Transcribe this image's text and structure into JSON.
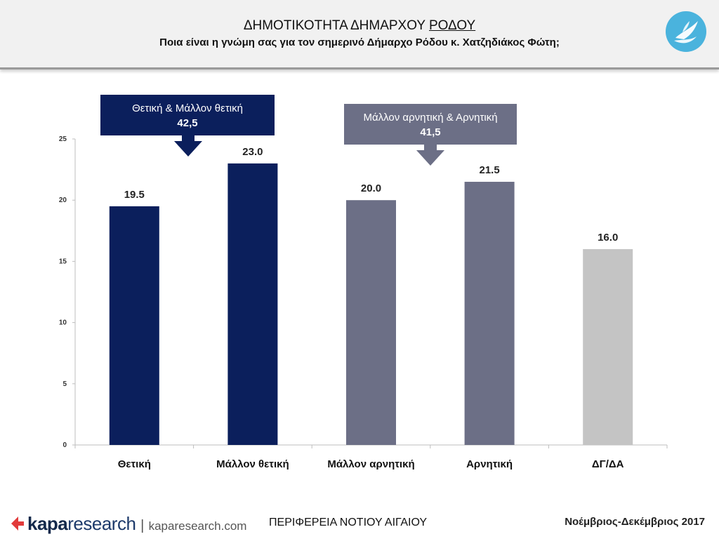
{
  "header": {
    "title_part1": "ΔΗΜΟΤΙΚΟΤΗΤΑ ΔΗΜΑΡΧΟΥ ",
    "title_part2": "ΡΟΔΟΥ",
    "subtitle": "Ποια είναι η γνώμη σας για τον σημερινό Δήμαρχο Ρόδου κ. Χατζηδιάκος Φώτη;"
  },
  "chart_data": {
    "type": "bar",
    "categories": [
      "Θετική",
      "Μάλλον θετική",
      "Μάλλον αρνητική",
      "Αρνητική",
      "ΔΓ/ΔΑ"
    ],
    "values": [
      19.5,
      23.0,
      20.0,
      21.5,
      16.0
    ],
    "value_labels": [
      "19.5",
      "23.0",
      "20.0",
      "21.5",
      "16.0"
    ],
    "bar_colors": [
      "#0b1f5c",
      "#0b1f5c",
      "#6c6f86",
      "#6c6f86",
      "#c4c4c4"
    ],
    "ylim": [
      0,
      25
    ],
    "yticks": [
      0,
      5,
      10,
      15,
      20,
      25
    ],
    "grid": false,
    "annotations": [
      {
        "line1": "Θετική & Μάλλον θετική",
        "line2": "42,5",
        "color": "#0b1f5c",
        "categories": [
          0,
          1
        ]
      },
      {
        "line1": "Μάλλον αρνητική & Αρνητική",
        "line2": "41,5",
        "color": "#6c6f86",
        "categories": [
          2,
          3
        ]
      }
    ]
  },
  "footer": {
    "brand_kapa": "kapa",
    "brand_research": "research",
    "brand_sep": "|",
    "brand_url": "kaparesearch.com",
    "region": "ΠΕΡΙΦΕΡΕΙΑ ΝΟΤΙΟΥ ΑΙΓΑΙΟΥ",
    "date": "Νοέμβριος-Δεκέμβριος 2017"
  },
  "icons": {
    "header_logo": "dove-logo-icon",
    "brand_logo": "kapa-logo-icon"
  }
}
